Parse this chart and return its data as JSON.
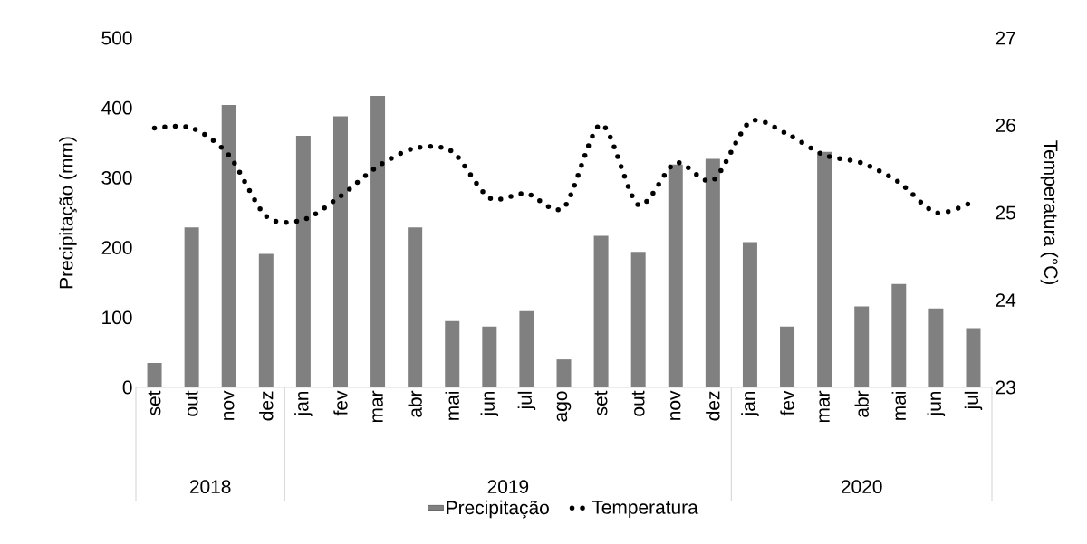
{
  "chart_data": {
    "type": "bar",
    "categories": [
      "set",
      "out",
      "nov",
      "dez",
      "jan",
      "fev",
      "mar",
      "abr",
      "mai",
      "jun",
      "jul",
      "ago",
      "set",
      "out",
      "nov",
      "dez",
      "jan",
      "fev",
      "mar",
      "abr",
      "mai",
      "jun",
      "jul"
    ],
    "series": [
      {
        "name": "Precipitação",
        "color": "#808080",
        "values": [
          35,
          229,
          404,
          191,
          360,
          388,
          417,
          229,
          95,
          87,
          109,
          40,
          217,
          194,
          319,
          327,
          208,
          87,
          337,
          116,
          148,
          113,
          85
        ]
      },
      {
        "name": "Temperatura",
        "type": "line",
        "axis": "y2",
        "line_style": "dotted",
        "color": "#000000",
        "values": [
          25.97,
          25.97,
          25.66,
          24.96,
          24.92,
          25.19,
          25.53,
          25.74,
          25.7,
          25.17,
          25.22,
          25.06,
          26.01,
          25.09,
          25.57,
          25.37,
          26.04,
          25.9,
          25.66,
          25.57,
          25.35,
          25.0,
          25.13
        ]
      }
    ],
    "ylabel": "Precipitação (mm)",
    "y2label": "Temperatura (°C)",
    "ylim": [
      0,
      500
    ],
    "yticks": [
      0,
      100,
      200,
      300,
      400,
      500
    ],
    "y2lim": [
      23,
      27
    ],
    "y2ticks": [
      23,
      24,
      25,
      26,
      27
    ],
    "annotations": [
      "2018",
      "2019",
      "2020"
    ],
    "legend": "bottom"
  }
}
